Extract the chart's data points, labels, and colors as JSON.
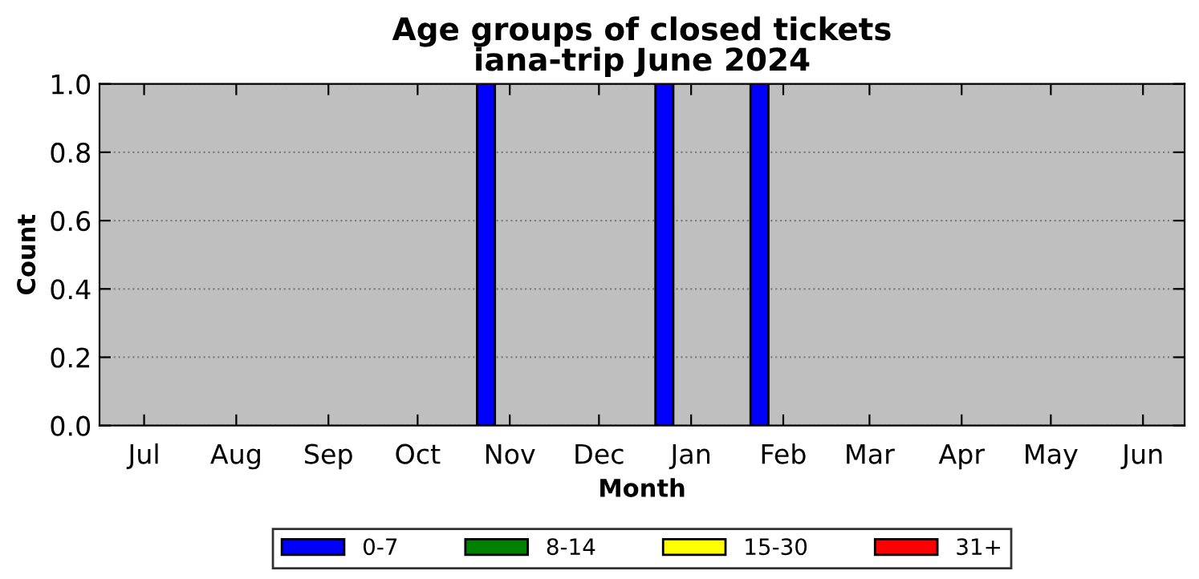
{
  "chart_data": {
    "type": "bar",
    "stacked": true,
    "title": "Age groups of closed tickets\niana-trip June 2024",
    "xlabel": "Month",
    "ylabel": "Count",
    "x": [
      "2023-10-24",
      "2023-12-23",
      "2024-01-24"
    ],
    "series": [
      {
        "name": "0-7",
        "color": "#0000ff",
        "values": [
          1,
          1,
          1
        ]
      },
      {
        "name": "8-14",
        "color": "#008000",
        "values": [
          0,
          0,
          0
        ]
      },
      {
        "name": "15-30",
        "color": "#ffff00",
        "values": [
          0,
          0,
          0
        ]
      },
      {
        "name": "31+",
        "color": "#ff0000",
        "values": [
          0,
          0,
          0
        ]
      }
    ],
    "xlim": [
      "2023-06-16",
      "2024-06-15"
    ],
    "xticks": [
      {
        "value": "2023-07-01",
        "label": "Jul"
      },
      {
        "value": "2023-08-01",
        "label": "Aug"
      },
      {
        "value": "2023-09-01",
        "label": "Sep"
      },
      {
        "value": "2023-10-01",
        "label": "Oct"
      },
      {
        "value": "2023-11-01",
        "label": "Nov"
      },
      {
        "value": "2023-12-01",
        "label": "Dec"
      },
      {
        "value": "2024-01-01",
        "label": "Jan"
      },
      {
        "value": "2024-02-01",
        "label": "Feb"
      },
      {
        "value": "2024-03-01",
        "label": "Mar"
      },
      {
        "value": "2024-04-01",
        "label": "Apr"
      },
      {
        "value": "2024-05-01",
        "label": "May"
      },
      {
        "value": "2024-06-01",
        "label": "Jun"
      }
    ],
    "ylim": [
      0,
      1.0
    ],
    "yticks": [
      {
        "value": 0,
        "label": "0.0"
      },
      {
        "value": 0.2,
        "label": "0.2"
      },
      {
        "value": 0.4,
        "label": "0.4"
      },
      {
        "value": 0.6,
        "label": "0.6"
      },
      {
        "value": 0.8,
        "label": "0.8"
      },
      {
        "value": 1.0,
        "label": "1.0"
      }
    ],
    "grid": "y",
    "legend": "bottom"
  }
}
